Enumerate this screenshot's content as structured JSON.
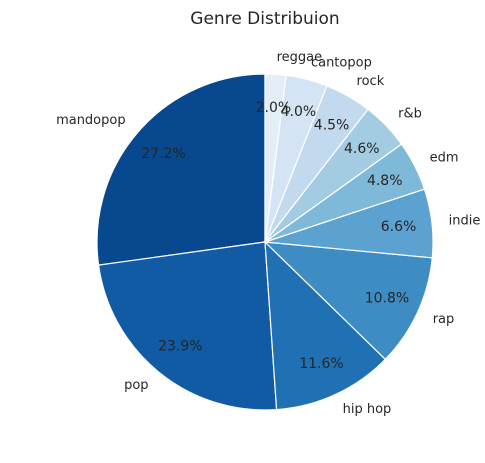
{
  "chart_data": {
    "type": "pie",
    "title": "Genre Distribuion",
    "start_angle_deg": 90,
    "direction": "counterclockwise",
    "slices": [
      {
        "label": "mandopop",
        "value": 27.2,
        "pct_label": "27.2%",
        "color": "#08488e"
      },
      {
        "label": "pop",
        "value": 23.9,
        "pct_label": "23.9%",
        "color": "#105ba4"
      },
      {
        "label": "hip hop",
        "value": 11.6,
        "pct_label": "11.6%",
        "color": "#2070b4"
      },
      {
        "label": "rap",
        "value": 10.8,
        "pct_label": "10.8%",
        "color": "#3d8dc4"
      },
      {
        "label": "indie",
        "value": 6.6,
        "pct_label": "6.6%",
        "color": "#5ba2d0"
      },
      {
        "label": "edm",
        "value": 4.8,
        "pct_label": "4.8%",
        "color": "#7fb9da"
      },
      {
        "label": "r&b",
        "value": 4.6,
        "pct_label": "4.6%",
        "color": "#a3cce3"
      },
      {
        "label": "rock",
        "value": 4.5,
        "pct_label": "4.5%",
        "color": "#c3daee"
      },
      {
        "label": "cantopop",
        "value": 4.0,
        "pct_label": "4.0%",
        "color": "#d4e4f4"
      },
      {
        "label": "reggae",
        "value": 2.0,
        "pct_label": "2.0%",
        "color": "#e3eef9"
      }
    ]
  }
}
